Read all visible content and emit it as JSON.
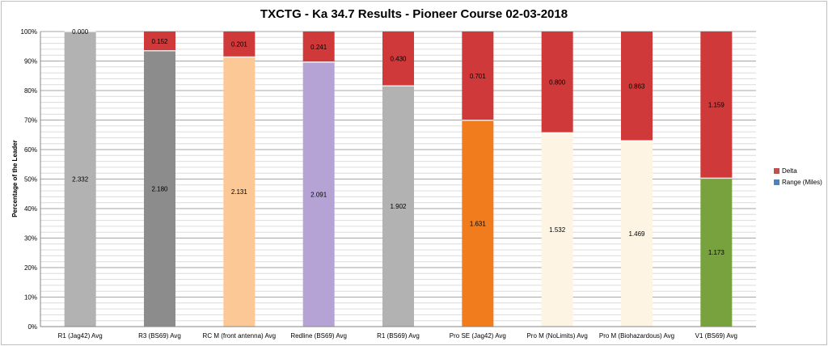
{
  "chart_data": {
    "type": "bar",
    "stacked": true,
    "title": "TXCTG - Ka 34.7 Results - Pioneer Course 02-03-2018",
    "ylabel": "Percentage of the Leader",
    "xlabel": "",
    "ylim": [
      0,
      100
    ],
    "y_ticks": [
      "0%",
      "10%",
      "20%",
      "30%",
      "40%",
      "50%",
      "60%",
      "70%",
      "80%",
      "90%",
      "100%"
    ],
    "grid": true,
    "legend_position": "right",
    "categories": [
      "R1 (Jag42) Avg",
      "R3 (BS69) Avg",
      "RC M (front antenna) Avg",
      "Redline (BS69) Avg",
      "R1 (BS69) Avg",
      "Pro SE (Jag42) Avg",
      "Pro M (NoLimits) Avg",
      "Pro M (Biohazardous) Avg",
      "V1 (BS69) Avg"
    ],
    "series": [
      {
        "name": "Range (Miles)",
        "legend_color": "#4f81bd",
        "values": [
          2.332,
          2.18,
          2.131,
          2.091,
          1.902,
          1.631,
          1.532,
          1.469,
          1.173
        ],
        "labels": [
          "2.332",
          "2.180",
          "2.131",
          "2.091",
          "1.902",
          "1.631",
          "1.532",
          "1.469",
          "1.173"
        ],
        "colors": [
          "#b2b2b2",
          "#8c8c8c",
          "#fcc896",
          "#b6a3d6",
          "#b2b2b2",
          "#f07c1d",
          "#fdf4e4",
          "#fdf4e4",
          "#78a23e"
        ]
      },
      {
        "name": "Delta",
        "legend_color": "#c0504d",
        "values": [
          0.0,
          0.152,
          0.201,
          0.241,
          0.43,
          0.701,
          0.8,
          0.863,
          1.159
        ],
        "labels": [
          "0.000",
          "0.152",
          "0.201",
          "0.241",
          "0.430",
          "0.701",
          "0.800",
          "0.863",
          "1.159"
        ],
        "colors": [
          "#d0393a",
          "#d0393a",
          "#d0393a",
          "#d0393a",
          "#d0393a",
          "#d0393a",
          "#d0393a",
          "#d0393a",
          "#d0393a"
        ]
      }
    ]
  }
}
